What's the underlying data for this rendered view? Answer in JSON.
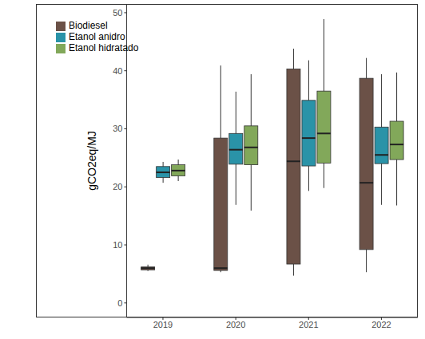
{
  "chart_data": {
    "type": "boxplot",
    "y_label": "gCO2eq/MJ",
    "categories": [
      "2019",
      "2020",
      "2021",
      "2022"
    ],
    "ylim": [
      -2.5,
      51.5
    ],
    "yticks": [
      0,
      10,
      20,
      30,
      40,
      50
    ],
    "grid": false,
    "legend": "upper left",
    "series": [
      {
        "name": "Biodiesel",
        "color": "#6b5147",
        "values": [
          {
            "min": 5.5,
            "q1": 5.7,
            "median": 6.0,
            "q3": 6.2,
            "max": 6.6
          },
          {
            "min": 5.3,
            "q1": 5.6,
            "median": 6.0,
            "q3": 28.4,
            "max": 40.9
          },
          {
            "min": 4.7,
            "q1": 6.7,
            "median": 24.4,
            "q3": 40.3,
            "max": 43.8
          },
          {
            "min": 5.3,
            "q1": 9.2,
            "median": 20.7,
            "q3": 38.7,
            "max": 42.2
          }
        ]
      },
      {
        "name": "Etanol anidro",
        "color": "#2a93a8",
        "values": [
          {
            "min": 20.7,
            "q1": 21.6,
            "median": 22.5,
            "q3": 23.5,
            "max": 24.3
          },
          {
            "min": 16.9,
            "q1": 23.9,
            "median": 26.4,
            "q3": 29.2,
            "max": 36.4
          },
          {
            "min": 19.3,
            "q1": 23.6,
            "median": 28.4,
            "q3": 34.9,
            "max": 41.8
          },
          {
            "min": 16.9,
            "q1": 24.0,
            "median": 25.5,
            "q3": 30.3,
            "max": 39.4
          }
        ]
      },
      {
        "name": "Etanol hidratado",
        "color": "#82a85a",
        "values": [
          {
            "min": 21.0,
            "q1": 21.9,
            "median": 22.8,
            "q3": 23.8,
            "max": 24.7
          },
          {
            "min": 15.9,
            "q1": 23.8,
            "median": 26.8,
            "q3": 30.5,
            "max": 39.4
          },
          {
            "min": 19.8,
            "q1": 24.1,
            "median": 29.2,
            "q3": 36.5,
            "max": 48.9
          },
          {
            "min": 16.8,
            "q1": 24.7,
            "median": 27.3,
            "q3": 31.3,
            "max": 39.7
          }
        ]
      }
    ]
  }
}
